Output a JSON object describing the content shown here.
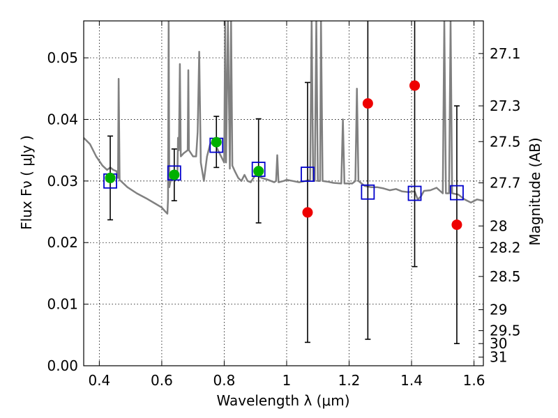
{
  "chart_data": {
    "type": "scatter",
    "xlabel": "Wavelength  λ (μm)",
    "ylabel": "Flux  Fν  ( μJy )",
    "y2label": "Magnitude (AB)",
    "xlim": [
      0.35,
      1.63
    ],
    "ylim": [
      0.0,
      0.056
    ],
    "x_ticks": [
      0.4,
      0.6,
      0.8,
      1.0,
      1.2,
      1.4,
      1.6
    ],
    "x_tick_labels": [
      "0.4",
      "0.6",
      "0.8",
      "1",
      "1.2",
      "1.4",
      "1.6"
    ],
    "y_ticks": [
      0.0,
      0.01,
      0.02,
      0.03,
      0.04,
      0.05
    ],
    "y_tick_labels": [
      "0.00",
      "0.01",
      "0.02",
      "0.03",
      "0.04",
      "0.05"
    ],
    "y2_ticks": [
      {
        "label": "27.1",
        "flux": 0.0507
      },
      {
        "label": "27.3",
        "flux": 0.0422
      },
      {
        "label": "27.5",
        "flux": 0.0364
      },
      {
        "label": "27.7",
        "flux": 0.0297
      },
      {
        "label": "28",
        "flux": 0.0227
      },
      {
        "label": "28.2",
        "flux": 0.0192
      },
      {
        "label": "28.5",
        "flux": 0.0145
      },
      {
        "label": "29",
        "flux": 0.0091
      },
      {
        "label": "29.5",
        "flux": 0.0057
      },
      {
        "label": "30",
        "flux": 0.0036
      },
      {
        "label": "31",
        "flux": 0.0014
      }
    ],
    "grid": true,
    "series": [
      {
        "kind": "detections",
        "color": "#00b000",
        "points": [
          {
            "x": 0.435,
            "y": 0.0305,
            "ylo": 0.0237,
            "yhi": 0.0373
          },
          {
            "x": 0.64,
            "y": 0.031,
            "ylo": 0.0268,
            "yhi": 0.0352
          },
          {
            "x": 0.775,
            "y": 0.0363,
            "ylo": 0.0322,
            "yhi": 0.0405
          },
          {
            "x": 0.91,
            "y": 0.0316,
            "ylo": 0.0232,
            "yhi": 0.0401
          }
        ]
      },
      {
        "kind": "low_significance",
        "color": "#ee0000",
        "points": [
          {
            "x": 1.067,
            "y": 0.0249,
            "ylo": 0.0038,
            "yhi": 0.046
          },
          {
            "x": 1.26,
            "y": 0.0426,
            "ylo": 0.0043,
            "yhi": 0.056
          },
          {
            "x": 1.41,
            "y": 0.0455,
            "ylo": 0.0161,
            "yhi": 0.056
          },
          {
            "x": 1.545,
            "y": 0.0229,
            "ylo": 0.0036,
            "yhi": 0.0422
          }
        ]
      },
      {
        "kind": "model_photometry",
        "color": "#0000cc",
        "points": [
          {
            "x": 0.435,
            "y": 0.03
          },
          {
            "x": 0.64,
            "y": 0.0313
          },
          {
            "x": 0.775,
            "y": 0.0358
          },
          {
            "x": 0.91,
            "y": 0.0319
          },
          {
            "x": 1.067,
            "y": 0.0311
          },
          {
            "x": 1.26,
            "y": 0.0282
          },
          {
            "x": 1.41,
            "y": 0.028
          },
          {
            "x": 1.545,
            "y": 0.0281
          }
        ]
      },
      {
        "kind": "model_spectrum",
        "color": "#808080",
        "points": [
          [
            0.35,
            0.037
          ],
          [
            0.37,
            0.036
          ],
          [
            0.39,
            0.034
          ],
          [
            0.41,
            0.0325
          ],
          [
            0.425,
            0.0318
          ],
          [
            0.435,
            0.0322
          ],
          [
            0.445,
            0.0318
          ],
          [
            0.455,
            0.0316
          ],
          [
            0.46,
            0.0305
          ],
          [
            0.462,
            0.0466
          ],
          [
            0.465,
            0.0302
          ],
          [
            0.49,
            0.029
          ],
          [
            0.52,
            0.028
          ],
          [
            0.55,
            0.0272
          ],
          [
            0.58,
            0.0263
          ],
          [
            0.6,
            0.0257
          ],
          [
            0.612,
            0.025
          ],
          [
            0.618,
            0.0247
          ],
          [
            0.62,
            0.027
          ],
          [
            0.622,
            0.056
          ],
          [
            0.624,
            0.029
          ],
          [
            0.63,
            0.0305
          ],
          [
            0.645,
            0.031
          ],
          [
            0.65,
            0.0305
          ],
          [
            0.652,
            0.037
          ],
          [
            0.655,
            0.035
          ],
          [
            0.658,
            0.049
          ],
          [
            0.661,
            0.034
          ],
          [
            0.67,
            0.0345
          ],
          [
            0.683,
            0.035
          ],
          [
            0.685,
            0.048
          ],
          [
            0.687,
            0.035
          ],
          [
            0.7,
            0.034
          ],
          [
            0.71,
            0.034
          ],
          [
            0.715,
            0.038
          ],
          [
            0.72,
            0.051
          ],
          [
            0.725,
            0.033
          ],
          [
            0.735,
            0.03
          ],
          [
            0.745,
            0.034
          ],
          [
            0.755,
            0.036
          ],
          [
            0.765,
            0.0365
          ],
          [
            0.78,
            0.035
          ],
          [
            0.79,
            0.034
          ],
          [
            0.8,
            0.033
          ],
          [
            0.803,
            0.056
          ],
          [
            0.806,
            0.033
          ],
          [
            0.812,
            0.056
          ],
          [
            0.818,
            0.032
          ],
          [
            0.822,
            0.056
          ],
          [
            0.826,
            0.0325
          ],
          [
            0.835,
            0.0315
          ],
          [
            0.845,
            0.0305
          ],
          [
            0.855,
            0.03
          ],
          [
            0.865,
            0.031
          ],
          [
            0.875,
            0.03
          ],
          [
            0.885,
            0.0298
          ],
          [
            0.9,
            0.031
          ],
          [
            0.92,
            0.0305
          ],
          [
            0.94,
            0.0302
          ],
          [
            0.96,
            0.0298
          ],
          [
            0.966,
            0.03
          ],
          [
            0.97,
            0.0342
          ],
          [
            0.974,
            0.0298
          ],
          [
            0.99,
            0.03
          ],
          [
            1.0,
            0.0302
          ],
          [
            1.02,
            0.03
          ],
          [
            1.04,
            0.0298
          ],
          [
            1.06,
            0.03
          ],
          [
            1.075,
            0.0302
          ],
          [
            1.08,
            0.056
          ],
          [
            1.085,
            0.03
          ],
          [
            1.09,
            0.03
          ],
          [
            1.095,
            0.056
          ],
          [
            1.1,
            0.03
          ],
          [
            1.107,
            0.03
          ],
          [
            1.11,
            0.056
          ],
          [
            1.115,
            0.03
          ],
          [
            1.13,
            0.0299
          ],
          [
            1.15,
            0.0297
          ],
          [
            1.175,
            0.0296
          ],
          [
            1.18,
            0.04
          ],
          [
            1.185,
            0.0296
          ],
          [
            1.21,
            0.0296
          ],
          [
            1.22,
            0.03
          ],
          [
            1.225,
            0.045
          ],
          [
            1.23,
            0.03
          ],
          [
            1.25,
            0.0292
          ],
          [
            1.27,
            0.029
          ],
          [
            1.29,
            0.029
          ],
          [
            1.31,
            0.0288
          ],
          [
            1.33,
            0.0285
          ],
          [
            1.35,
            0.0287
          ],
          [
            1.37,
            0.0283
          ],
          [
            1.39,
            0.0282
          ],
          [
            1.41,
            0.0283
          ],
          [
            1.42,
            0.027
          ],
          [
            1.43,
            0.0275
          ],
          [
            1.44,
            0.0284
          ],
          [
            1.46,
            0.0285
          ],
          [
            1.48,
            0.0289
          ],
          [
            1.5,
            0.028
          ],
          [
            1.505,
            0.056
          ],
          [
            1.51,
            0.028
          ],
          [
            1.52,
            0.028
          ],
          [
            1.525,
            0.056
          ],
          [
            1.53,
            0.028
          ],
          [
            1.55,
            0.0278
          ],
          [
            1.57,
            0.027
          ],
          [
            1.59,
            0.0265
          ],
          [
            1.61,
            0.027
          ],
          [
            1.63,
            0.0268
          ]
        ]
      }
    ]
  }
}
